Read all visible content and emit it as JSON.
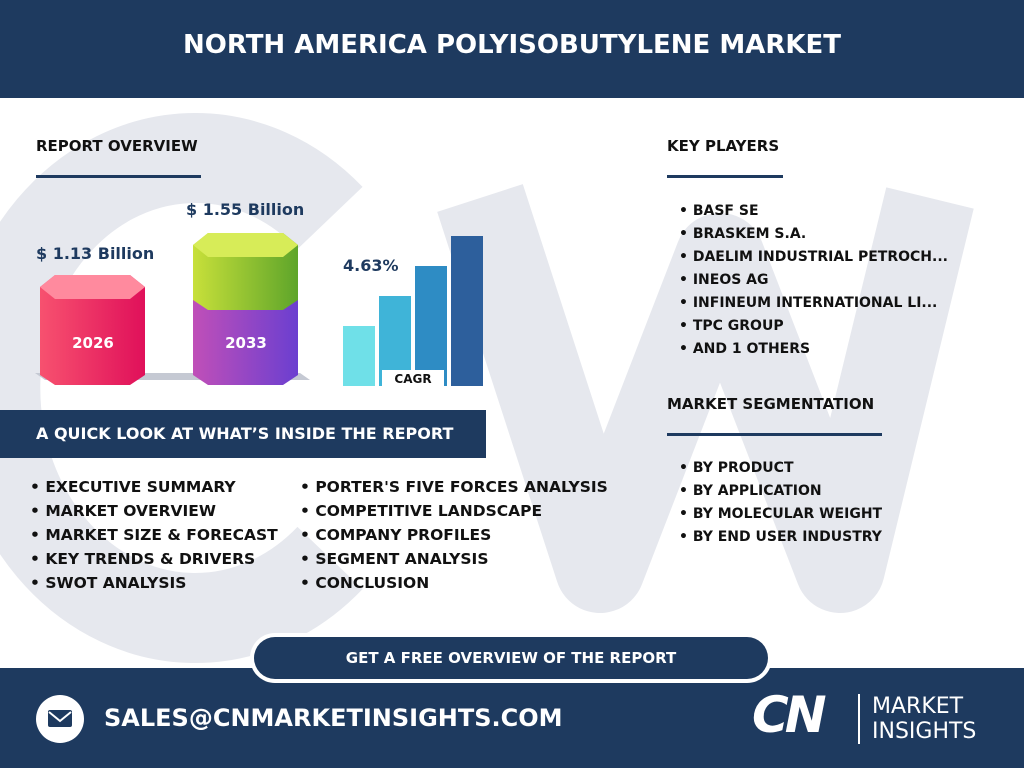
{
  "header": {
    "title": "NORTH AMERICA POLYISOBUTYLENE MARKET"
  },
  "overview": {
    "heading": "REPORT OVERVIEW",
    "value_start": "$ 1.13 Billion",
    "value_end": "$ 1.55 Billion",
    "year_start": "2026",
    "year_end": "2033",
    "cagr_value": "4.63%",
    "cagr_label": "CAGR"
  },
  "key_players": {
    "heading": "KEY PLAYERS",
    "items": [
      "BASF SE",
      "BRASKEM S.A.",
      "DAELIM INDUSTRIAL PETROCH...",
      "INEOS AG",
      "INFINEUM INTERNATIONAL LI...",
      "TPC GROUP",
      "AND 1 OTHERS"
    ]
  },
  "segmentation": {
    "heading": "MARKET SEGMENTATION",
    "items": [
      "BY PRODUCT",
      "BY APPLICATION",
      "BY MOLECULAR WEIGHT",
      "BY END USER INDUSTRY"
    ]
  },
  "quick_look": {
    "heading": "A QUICK LOOK AT WHAT’S INSIDE THE REPORT",
    "column_1": [
      "EXECUTIVE SUMMARY",
      "MARKET OVERVIEW",
      "MARKET SIZE & FORECAST",
      "KEY TRENDS & DRIVERS",
      "SWOT ANALYSIS"
    ],
    "column_2": [
      "PORTER'S FIVE FORCES ANALYSIS",
      "COMPETITIVE LANDSCAPE",
      "COMPANY PROFILES",
      "SEGMENT ANALYSIS",
      "CONCLUSION"
    ]
  },
  "cta": {
    "label": "GET A FREE OVERVIEW OF THE REPORT"
  },
  "footer": {
    "email": "SALES@CNMARKETINSIGHTS.COM",
    "logo_mark": "CN",
    "logo_line_1": "MARKET",
    "logo_line_2": "INSIGHTS"
  }
}
